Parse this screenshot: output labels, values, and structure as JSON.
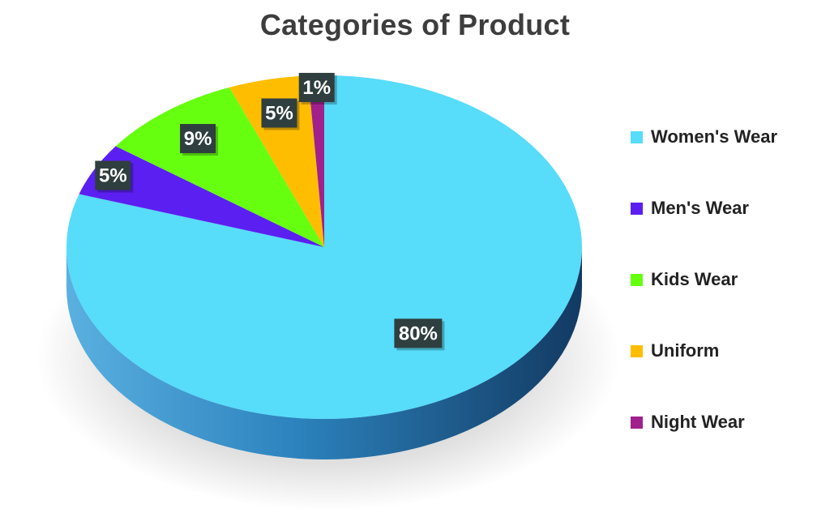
{
  "chart_data": {
    "type": "pie",
    "title": "Categories of Product",
    "categories": [
      "Women's Wear",
      "Men's Wear",
      "Kids Wear",
      "Uniform",
      "Night Wear"
    ],
    "values": [
      80,
      5,
      9,
      5,
      1
    ],
    "value_labels": [
      "80%",
      "5%",
      "9%",
      "5%",
      "1%"
    ],
    "colors": [
      "#57dcfa",
      "#5b1ff2",
      "#66ff10",
      "#ffbd00",
      "#a0218c"
    ],
    "side_color": "#2a78ad",
    "label_box_color": "#2f3e3e",
    "legend_position": "right",
    "style": "3d"
  }
}
